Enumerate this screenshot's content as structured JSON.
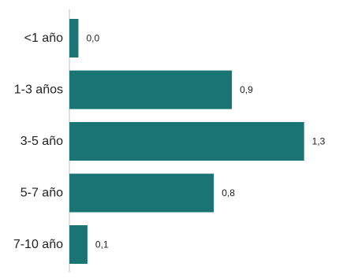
{
  "chart_data": {
    "type": "bar",
    "orientation": "horizontal",
    "categories": [
      "<1 año",
      "1-3 años",
      "3-5 año",
      "5-7 año",
      "7-10 año"
    ],
    "values": [
      0.05,
      0.9,
      1.3,
      0.8,
      0.1
    ],
    "value_labels": [
      "0,0",
      "0,9",
      "1,3",
      "0,8",
      "0,1"
    ],
    "title": "",
    "xlabel": "",
    "ylabel": "",
    "xlim": [
      0,
      1.38
    ],
    "grid": false,
    "legend": "none",
    "bar_color": "#1b7474",
    "axis_color": "#bfbfbf",
    "text_color": "#222222"
  }
}
